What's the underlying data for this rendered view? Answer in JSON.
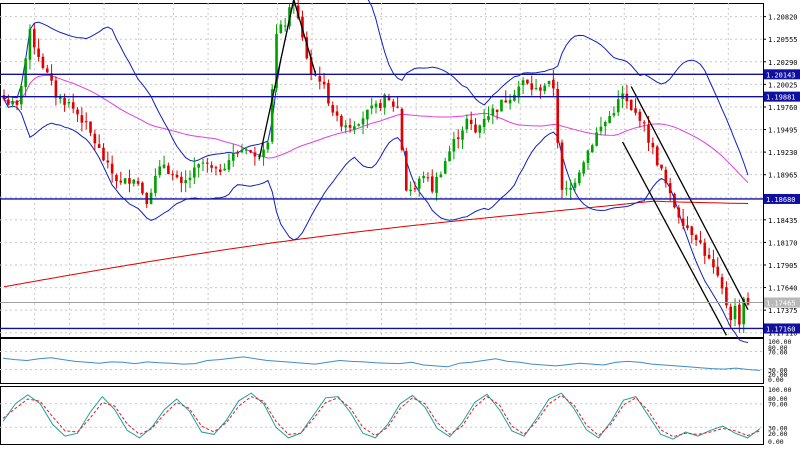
{
  "chart_data": [
    {
      "type": "candlestick",
      "panel": "main",
      "ylim": [
        1.1706,
        1.2098
      ],
      "y_ticks": [
        "1.20820",
        "1.20555",
        "1.20290",
        "1.20025",
        "1.19760",
        "1.19495",
        "1.19230",
        "1.18965",
        "1.18700",
        "1.18435",
        "1.18170",
        "1.17905",
        "1.17640",
        "1.17375",
        "1.17110"
      ],
      "highlighted_levels": [
        {
          "label": "1.20143",
          "value": 1.20143,
          "kind": "horizontal-line"
        },
        {
          "label": "1.19881",
          "value": 1.19881,
          "kind": "horizontal-line"
        },
        {
          "label": "1.18680",
          "value": 1.1868,
          "kind": "horizontal-line"
        },
        {
          "label": "1.17160",
          "value": 1.1716,
          "kind": "horizontal-line"
        }
      ],
      "current_price": {
        "label": "1.17465",
        "value": 1.17465
      },
      "close_path": [
        [
          0,
          1.1985
        ],
        [
          3,
          1.1975
        ],
        [
          6,
          1.2062
        ],
        [
          9,
          1.2025
        ],
        [
          12,
          1.199
        ],
        [
          15,
          1.198
        ],
        [
          18,
          1.1962
        ],
        [
          21,
          1.1935
        ],
        [
          24,
          1.1905
        ],
        [
          27,
          1.1885
        ],
        [
          30,
          1.1895
        ],
        [
          33,
          1.1868
        ],
        [
          35,
          1.1892
        ],
        [
          37,
          1.191
        ],
        [
          39,
          1.1895
        ],
        [
          41,
          1.1882
        ],
        [
          44,
          1.19
        ],
        [
          46,
          1.191
        ],
        [
          49,
          1.1898
        ],
        [
          52,
          1.1915
        ],
        [
          56,
          1.193
        ],
        [
          58,
          1.1915
        ],
        [
          61,
          1.194
        ],
        [
          63,
          1.206
        ],
        [
          65,
          1.2075
        ],
        [
          67,
          1.21
        ],
        [
          69,
          1.2055
        ],
        [
          71,
          1.2015
        ],
        [
          73,
          1.201
        ],
        [
          75,
          1.1985
        ],
        [
          77,
          1.196
        ],
        [
          80,
          1.1955
        ],
        [
          83,
          1.1965
        ],
        [
          86,
          1.1975
        ],
        [
          88,
          1.1985
        ],
        [
          91,
          1.1975
        ],
        [
          93,
          1.188
        ],
        [
          95,
          1.188
        ],
        [
          97,
          1.1898
        ],
        [
          99,
          1.188
        ],
        [
          101,
          1.1902
        ],
        [
          104,
          1.1935
        ],
        [
          107,
          1.196
        ],
        [
          109,
          1.1945
        ],
        [
          111,
          1.1965
        ],
        [
          114,
          1.1975
        ],
        [
          117,
          1.199
        ],
        [
          120,
          1.2005
        ],
        [
          123,
          1.1995
        ],
        [
          125,
          1.2003
        ],
        [
          127,
          1.2
        ],
        [
          129,
          1.1875
        ],
        [
          131,
          1.188
        ],
        [
          134,
          1.1915
        ],
        [
          137,
          1.1945
        ],
        [
          140,
          1.1965
        ],
        [
          143,
          1.199
        ],
        [
          145,
          1.197
        ],
        [
          147,
          1.1965
        ],
        [
          150,
          1.1925
        ],
        [
          152,
          1.19
        ],
        [
          154,
          1.187
        ],
        [
          156,
          1.185
        ],
        [
          158,
          1.1835
        ],
        [
          160,
          1.1825
        ],
        [
          162,
          1.1805
        ],
        [
          164,
          1.1785
        ],
        [
          166,
          1.176
        ],
        [
          168,
          1.173
        ],
        [
          169,
          1.174
        ],
        [
          170,
          1.1725
        ],
        [
          171,
          1.1752
        ],
        [
          172,
          1.17465
        ]
      ]
    },
    {
      "type": "line",
      "panel": "oscillator-1",
      "y_ticks": [
        "100.00",
        "80.00",
        "70.00",
        "30.00",
        "20.00",
        "0.00"
      ],
      "series": [
        {
          "values": [
            55,
            52,
            50,
            54,
            56,
            52,
            48,
            46,
            44,
            47,
            46,
            43,
            47,
            45,
            44,
            42,
            43,
            50,
            52,
            55,
            58,
            54,
            50,
            48,
            46,
            44,
            42,
            46,
            50,
            48,
            47,
            45,
            44,
            43,
            46,
            40,
            38,
            36,
            44,
            46,
            50,
            54,
            48,
            46,
            42,
            40,
            38,
            41,
            44,
            42,
            40,
            46,
            48,
            46,
            42,
            40,
            38,
            36,
            34,
            32,
            31,
            33,
            30,
            28
          ]
        }
      ]
    },
    {
      "type": "line",
      "panel": "oscillator-2",
      "y_ticks": [
        "100.00",
        "80.00",
        "70.00",
        "30.00",
        "20.00",
        "0.00"
      ],
      "series": [
        {
          "values": [
            40,
            70,
            85,
            70,
            35,
            15,
            20,
            55,
            82,
            60,
            25,
            12,
            30,
            60,
            78,
            58,
            22,
            18,
            42,
            75,
            88,
            70,
            30,
            12,
            20,
            50,
            80,
            82,
            55,
            20,
            12,
            35,
            70,
            84,
            64,
            28,
            14,
            38,
            72,
            86,
            60,
            24,
            15,
            45,
            78,
            88,
            62,
            26,
            12,
            40,
            76,
            82,
            50,
            18,
            10,
            22,
            15,
            25,
            32,
            20,
            12,
            28
          ]
        },
        {
          "values": [
            45,
            62,
            78,
            74,
            48,
            24,
            22,
            45,
            72,
            66,
            36,
            18,
            28,
            52,
            72,
            62,
            32,
            22,
            38,
            66,
            82,
            74,
            40,
            18,
            20,
            44,
            72,
            80,
            62,
            30,
            16,
            30,
            62,
            80,
            70,
            38,
            18,
            32,
            64,
            82,
            68,
            32,
            18,
            40,
            70,
            84,
            68,
            34,
            16,
            36,
            68,
            80,
            58,
            26,
            14,
            20,
            18,
            22,
            28,
            24,
            16,
            24
          ]
        }
      ]
    }
  ]
}
